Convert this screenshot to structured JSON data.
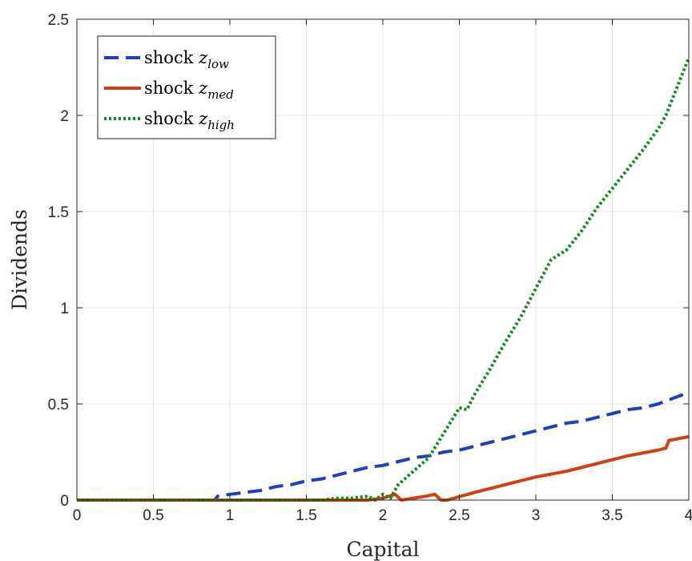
{
  "chart_data": {
    "type": "line",
    "title": "",
    "xlabel": "Capital",
    "ylabel": "Dividends",
    "xlim": [
      0,
      4
    ],
    "ylim": [
      0,
      2.5
    ],
    "xticks": [
      0,
      0.5,
      1,
      1.5,
      2,
      2.5,
      3,
      3.5,
      4
    ],
    "xtick_labels": [
      "0",
      "0.5",
      "1",
      "1.5",
      "2",
      "2.5",
      "3",
      "3.5",
      "4"
    ],
    "yticks": [
      0,
      0.5,
      1,
      1.5,
      2,
      2.5
    ],
    "ytick_labels": [
      "0",
      "0.5",
      "1",
      "1.5",
      "2",
      "2.5"
    ],
    "grid": true,
    "legend_position": "top-left",
    "series": [
      {
        "name": "shock z_low",
        "legend": {
          "base": "shock ",
          "var": "z",
          "sub": "low"
        },
        "color": "#1f3fbf",
        "style": "dashed",
        "x": [
          0,
          0.9,
          0.92,
          1.0,
          1.1,
          1.2,
          1.3,
          1.4,
          1.5,
          1.6,
          1.7,
          1.8,
          1.9,
          2.0,
          2.1,
          2.2,
          2.3,
          2.4,
          2.5,
          2.6,
          2.7,
          2.8,
          2.9,
          3.0,
          3.1,
          3.2,
          3.3,
          3.4,
          3.5,
          3.6,
          3.7,
          3.8,
          3.9,
          4.0
        ],
        "y": [
          0,
          0,
          0.02,
          0.03,
          0.04,
          0.05,
          0.07,
          0.08,
          0.1,
          0.11,
          0.13,
          0.15,
          0.17,
          0.18,
          0.2,
          0.22,
          0.23,
          0.25,
          0.26,
          0.28,
          0.3,
          0.32,
          0.34,
          0.36,
          0.38,
          0.4,
          0.41,
          0.43,
          0.45,
          0.47,
          0.48,
          0.5,
          0.53,
          0.56
        ]
      },
      {
        "name": "shock z_med",
        "legend": {
          "base": "shock ",
          "var": "z",
          "sub": "med"
        },
        "color": "#d2400f",
        "style": "solid",
        "x": [
          0,
          1.9,
          2.0,
          2.08,
          2.12,
          2.2,
          2.28,
          2.34,
          2.38,
          2.42,
          2.6,
          2.8,
          3.0,
          3.2,
          3.4,
          3.6,
          3.8,
          3.85,
          3.87,
          4.0
        ],
        "y": [
          0,
          0,
          0.01,
          0.03,
          0.0,
          0.01,
          0.02,
          0.03,
          0.0,
          0.0,
          0.04,
          0.08,
          0.12,
          0.15,
          0.19,
          0.23,
          0.26,
          0.27,
          0.31,
          0.33
        ]
      },
      {
        "name": "shock z_high",
        "legend": {
          "base": "shock ",
          "var": "z",
          "sub": "high"
        },
        "color": "#0b8c1a",
        "style": "dotted",
        "x": [
          0,
          1.6,
          1.7,
          1.8,
          1.9,
          1.95,
          2.0,
          2.05,
          2.1,
          2.2,
          2.3,
          2.4,
          2.5,
          2.55,
          2.6,
          2.7,
          2.8,
          2.9,
          3.0,
          3.1,
          3.2,
          3.3,
          3.4,
          3.5,
          3.6,
          3.7,
          3.8,
          3.85,
          3.9,
          3.95,
          4.0
        ],
        "y": [
          0,
          0,
          0.01,
          0.01,
          0.02,
          0.0,
          0.03,
          0.01,
          0.08,
          0.15,
          0.22,
          0.35,
          0.48,
          0.47,
          0.55,
          0.68,
          0.82,
          0.95,
          1.1,
          1.25,
          1.3,
          1.4,
          1.52,
          1.62,
          1.72,
          1.82,
          1.93,
          2.0,
          2.1,
          2.2,
          2.3
        ]
      }
    ]
  }
}
